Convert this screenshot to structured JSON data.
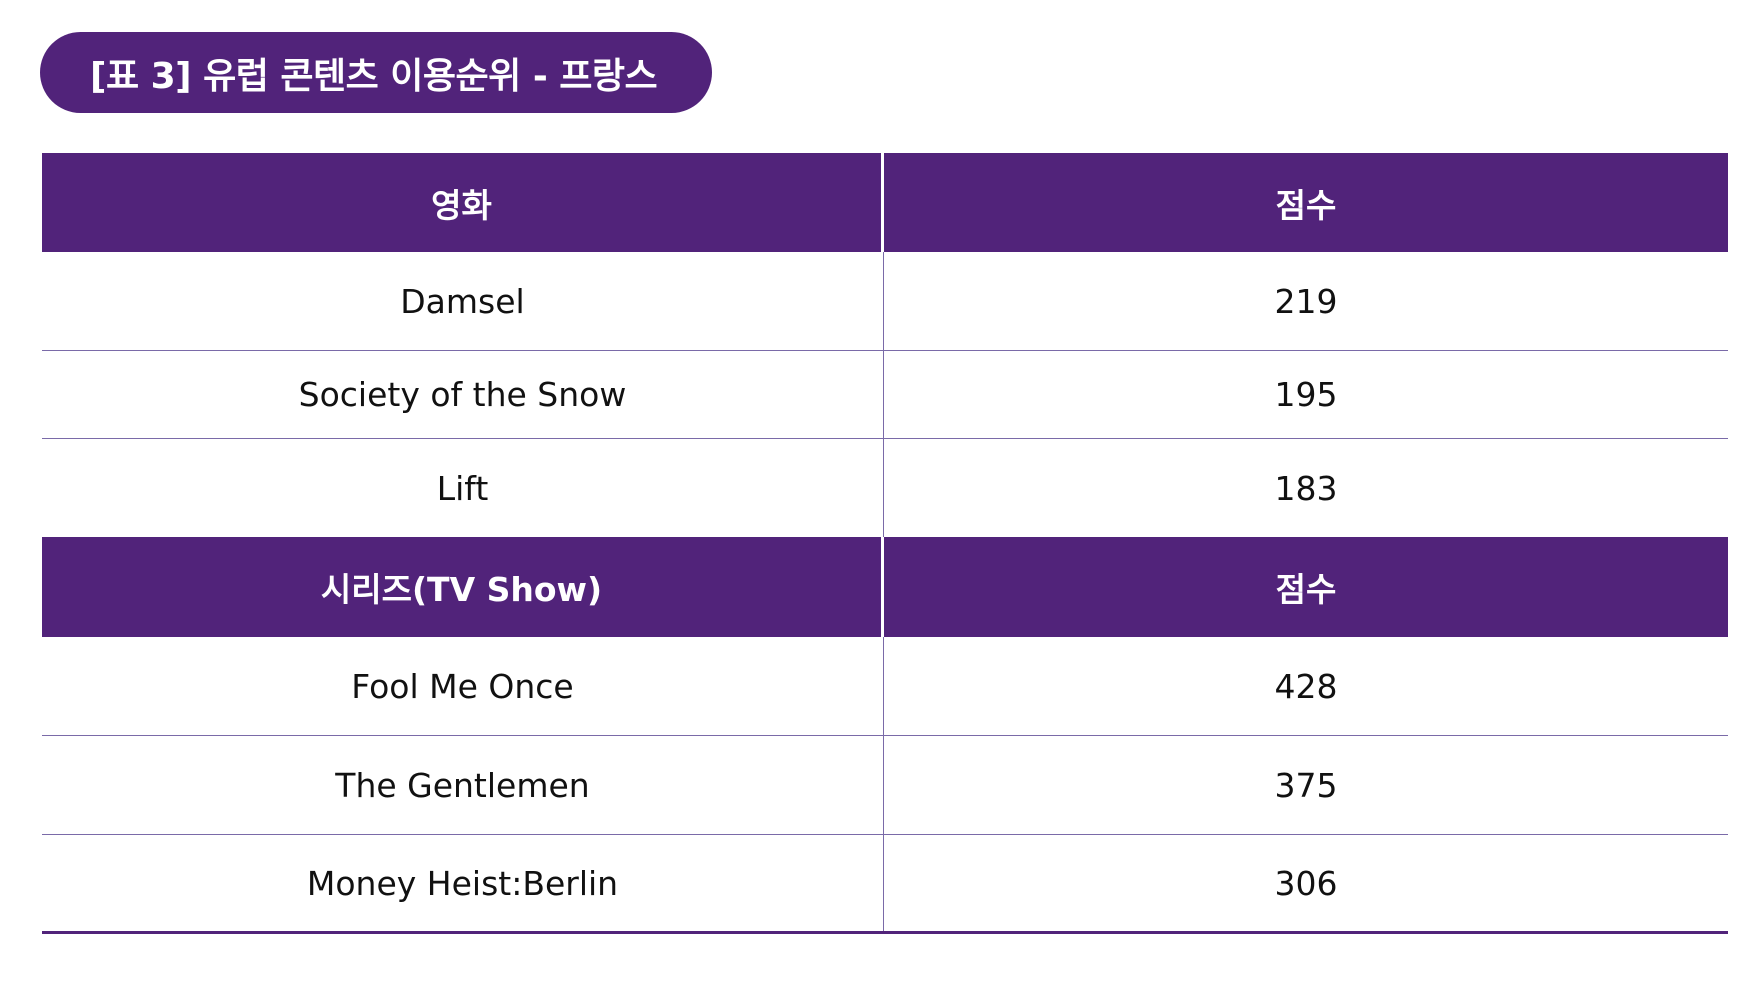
{
  "title": "[표 3] 유럽 콘텐츠 이용순위 - 프랑스",
  "colors": {
    "accent": "#51237a",
    "divider": "#7a6aa8",
    "header_text": "#ffffff"
  },
  "movies": {
    "col1_header": "영화",
    "col2_header": "점수",
    "rows": [
      {
        "name": "Damsel",
        "score": "219"
      },
      {
        "name": "Society of the Snow",
        "score": "195"
      },
      {
        "name": "Lift",
        "score": "183"
      }
    ]
  },
  "series": {
    "col1_header": "시리즈(TV Show)",
    "col2_header": "점수",
    "rows": [
      {
        "name": "Fool Me Once",
        "score": "428"
      },
      {
        "name": "The Gentlemen",
        "score": "375"
      },
      {
        "name": "Money Heist:Berlin",
        "score": "306"
      }
    ]
  }
}
